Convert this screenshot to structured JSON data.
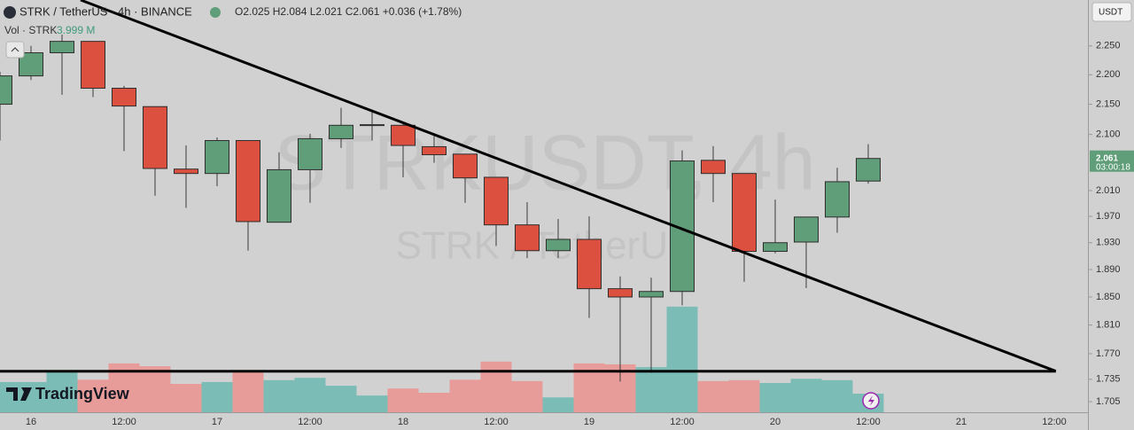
{
  "chart_data": {
    "type": "candlestick",
    "symbol_title": "STRK / TetherUS · 4h · BINANCE",
    "legend_text": "O2.025 H2.084 L2.021 C2.061 +0.036 (+1.78%)",
    "watermark": "STRKUSDT, 4h",
    "watermark_sub": "STRK / TetherUS",
    "currency": "USDT",
    "countdown": "03:00:18",
    "brand": "TradingView",
    "categories": [
      null,
      "16",
      null,
      null,
      "12:00",
      null,
      null,
      "17",
      null,
      null,
      "12:00",
      null,
      null,
      "18",
      null,
      null,
      "12:00",
      null,
      null,
      "19",
      null,
      null,
      "12:00",
      null,
      null,
      "20",
      null,
      null,
      "12:00",
      null,
      null,
      "21",
      null,
      null,
      "12:00"
    ],
    "open": [
      2.15,
      2.198,
      2.238,
      2.258,
      2.177,
      2.146,
      2.044,
      2.037,
      2.09,
      1.961,
      2.043,
      2.093,
      2.115,
      2.115,
      2.08,
      2.068,
      2.031,
      1.957,
      1.918,
      1.935,
      1.862,
      1.85,
      1.858,
      2.058,
      2.037,
      1.917,
      1.931,
      1.969,
      2.025,
      null,
      null,
      null,
      null,
      null,
      null
    ],
    "high": [
      2.205,
      2.25,
      2.27,
      2.258,
      2.181,
      2.146,
      2.082,
      2.095,
      2.09,
      2.071,
      2.101,
      2.144,
      2.14,
      2.121,
      2.101,
      2.068,
      2.031,
      1.992,
      1.966,
      1.97,
      1.88,
      1.878,
      2.074,
      2.081,
      2.037,
      1.996,
      1.969,
      2.046,
      2.084,
      null,
      null,
      null,
      null,
      null,
      null
    ],
    "low": [
      2.09,
      2.191,
      2.166,
      2.162,
      2.073,
      2.002,
      1.983,
      2.017,
      1.918,
      1.961,
      1.991,
      2.078,
      2.09,
      2.031,
      2.054,
      1.991,
      1.925,
      1.907,
      1.907,
      1.82,
      1.732,
      1.744,
      1.838,
      1.992,
      1.872,
      1.914,
      1.863,
      1.945,
      2.021,
      null,
      null,
      null,
      null,
      null,
      null
    ],
    "close": [
      2.198,
      2.238,
      2.258,
      2.177,
      2.147,
      2.045,
      2.037,
      2.09,
      1.962,
      2.043,
      2.093,
      2.115,
      2.116,
      2.082,
      2.067,
      2.03,
      1.957,
      1.918,
      1.935,
      1.862,
      1.85,
      1.858,
      2.057,
      2.037,
      1.917,
      1.93,
      1.969,
      2.024,
      2.061,
      null,
      null,
      null,
      null,
      null,
      null
    ],
    "up_color": "#5f9e78",
    "down_color": "#dc5040",
    "volume": {
      "name": "Vol · STRK",
      "values": [
        6.5,
        6.5,
        8.8,
        7.0,
        10.5,
        9.9,
        6.1,
        6.5,
        9.0,
        6.9,
        7.4,
        5.7,
        3.6,
        5.1,
        4.2,
        7.0,
        10.9,
        6.7,
        3.2,
        10.5,
        10.3,
        9.7,
        22.7,
        6.7,
        6.9,
        6.3,
        7.2,
        6.9,
        3.999,
        null,
        null,
        null,
        null,
        null,
        null
      ],
      "last_label": "3.999 M",
      "ylim": [
        0,
        88.6
      ],
      "up_color": "#7bbdb6",
      "down_color": "#e89c99"
    },
    "ylim": [
      1.691,
      2.332
    ],
    "log_scale": true,
    "yticks": [
      {
        "value": 2.25,
        "label": "2.250"
      },
      {
        "value": 2.2,
        "label": "2.200"
      },
      {
        "value": 2.15,
        "label": "2.150"
      },
      {
        "value": 2.1,
        "label": "2.100"
      },
      {
        "value": 2.01,
        "label": "2.010"
      },
      {
        "value": 1.97,
        "label": "1.970"
      },
      {
        "value": 1.93,
        "label": "1.930"
      },
      {
        "value": 1.89,
        "label": "1.890"
      },
      {
        "value": 1.85,
        "label": "1.850"
      },
      {
        "value": 1.81,
        "label": "1.810"
      },
      {
        "value": 1.77,
        "label": "1.770"
      },
      1.735,
      1.705
    ],
    "trendlines": [
      {
        "x": [
          2.6,
          34.05
        ],
        "y": [
          2.332,
          1.746
        ]
      },
      {
        "x": [
          0,
          34.05
        ],
        "y": [
          1.746,
          1.746
        ]
      }
    ]
  }
}
